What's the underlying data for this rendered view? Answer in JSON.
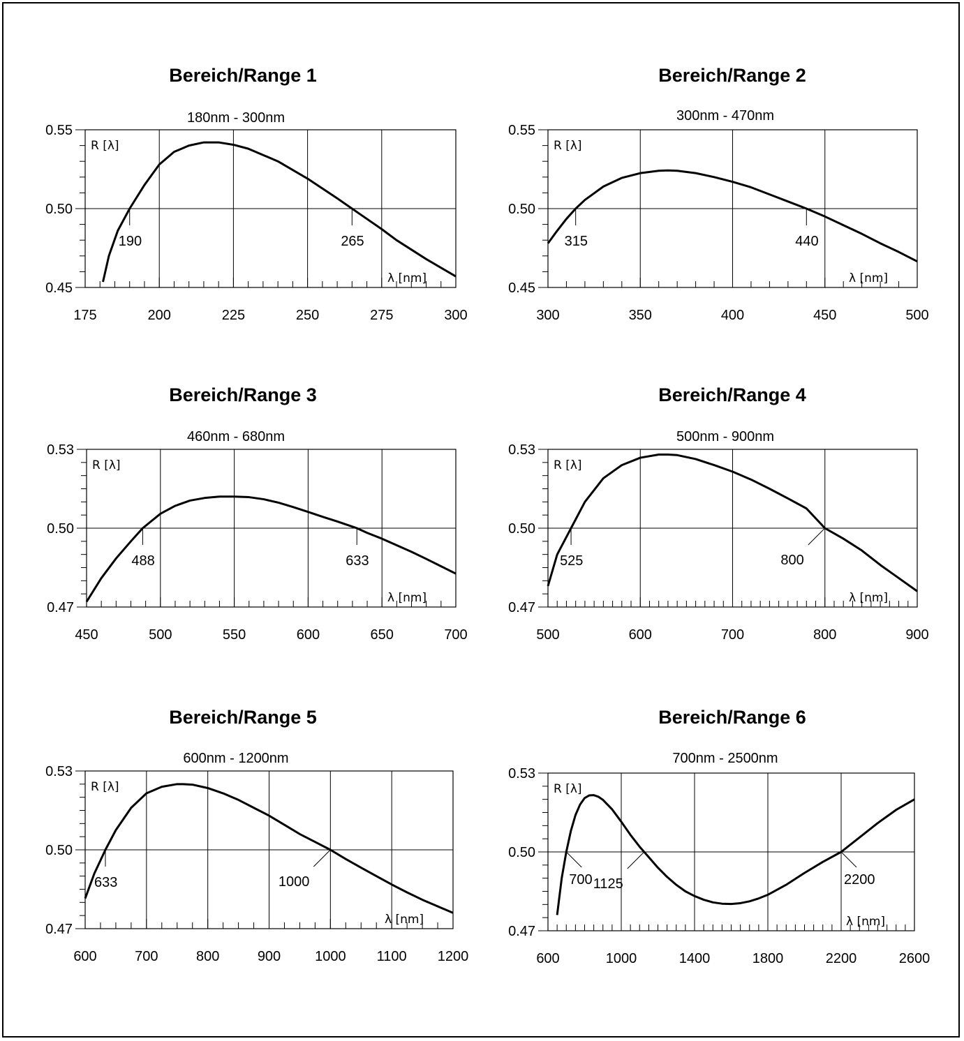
{
  "chart_data": [
    {
      "type": "line",
      "title": "Bereich/Range 1",
      "subtitle": "180nm - 300nm",
      "xlabel": "λ [nm]",
      "ylabel": "R [λ]",
      "xlim": [
        175,
        300
      ],
      "ylim": [
        0.45,
        0.55
      ],
      "x_major": [
        175,
        200,
        225,
        250,
        275,
        300
      ],
      "x_tick_labels": [
        "175",
        "200",
        "225",
        "250",
        "275",
        "300"
      ],
      "x_grid": [
        200,
        225,
        250,
        275
      ],
      "x_minor_step": 5,
      "y_tick_values": [
        0.45,
        0.5,
        0.55
      ],
      "y_tick_labels": [
        "0.45",
        "0.50",
        "0.55"
      ],
      "y_minor_step": 0.01,
      "grid": true,
      "annotations": [
        {
          "x": 190,
          "y": 0.5,
          "label": "190",
          "dir": "down"
        },
        {
          "x": 265,
          "y": 0.5,
          "label": "265",
          "dir": "down"
        }
      ],
      "series": [
        {
          "x": [
            181,
            183,
            186,
            190,
            195,
            200,
            205,
            210,
            215,
            220,
            225,
            230,
            240,
            250,
            260,
            265,
            270,
            275,
            280,
            290,
            300
          ],
          "y": [
            0.4535,
            0.47,
            0.486,
            0.5,
            0.515,
            0.528,
            0.536,
            0.54,
            0.542,
            0.542,
            0.5405,
            0.538,
            0.53,
            0.519,
            0.5065,
            0.5,
            0.4935,
            0.487,
            0.48,
            0.468,
            0.457
          ]
        }
      ]
    },
    {
      "type": "line",
      "title": "Bereich/Range 2",
      "subtitle": "300nm - 470nm",
      "xlabel": "λ [nm]",
      "ylabel": "R [λ]",
      "xlim": [
        300,
        500
      ],
      "ylim": [
        0.45,
        0.55
      ],
      "x_major": [
        300,
        350,
        400,
        450,
        500
      ],
      "x_tick_labels": [
        "300",
        "350",
        "400",
        "450",
        "500"
      ],
      "x_grid": [
        350,
        400,
        450
      ],
      "x_minor_step": 10,
      "y_tick_values": [
        0.45,
        0.5,
        0.55
      ],
      "y_tick_labels": [
        "0.45",
        "0.50",
        "0.55"
      ],
      "y_minor_step": 0.01,
      "grid": true,
      "annotations": [
        {
          "x": 315,
          "y": 0.5,
          "label": "315",
          "dir": "down"
        },
        {
          "x": 440,
          "y": 0.5,
          "label": "440",
          "dir": "down"
        }
      ],
      "series": [
        {
          "x": [
            300,
            305,
            310,
            315,
            320,
            330,
            340,
            350,
            360,
            365,
            370,
            380,
            390,
            400,
            410,
            420,
            430,
            440,
            450,
            460,
            470,
            480,
            490,
            500
          ],
          "y": [
            0.478,
            0.486,
            0.4935,
            0.5,
            0.5055,
            0.514,
            0.5195,
            0.5225,
            0.524,
            0.5242,
            0.524,
            0.5225,
            0.52,
            0.517,
            0.5135,
            0.509,
            0.5045,
            0.5,
            0.495,
            0.4895,
            0.484,
            0.478,
            0.4725,
            0.4665
          ]
        }
      ]
    },
    {
      "type": "line",
      "title": "Bereich/Range 3",
      "subtitle": "460nm - 680nm",
      "xlabel": "λ [nm]",
      "ylabel": "R [λ]",
      "xlim": [
        450,
        700
      ],
      "ylim": [
        0.47,
        0.53
      ],
      "x_major": [
        450,
        500,
        550,
        600,
        650,
        700
      ],
      "x_tick_labels": [
        "450",
        "500",
        "550",
        "600",
        "650",
        "700"
      ],
      "x_grid": [
        500,
        550,
        600,
        650
      ],
      "x_minor_step": 10,
      "y_tick_values": [
        0.47,
        0.5,
        0.53
      ],
      "y_tick_labels": [
        "0.47",
        "0.50",
        "0.53"
      ],
      "y_minor_step": 0.005,
      "grid": true,
      "annotations": [
        {
          "x": 488,
          "y": 0.5,
          "label": "488",
          "dir": "down"
        },
        {
          "x": 633,
          "y": 0.5,
          "label": "633",
          "dir": "down"
        }
      ],
      "series": [
        {
          "x": [
            450,
            460,
            470,
            480,
            488,
            500,
            510,
            520,
            530,
            540,
            550,
            560,
            570,
            580,
            590,
            600,
            610,
            620,
            633,
            640,
            650,
            660,
            670,
            680,
            690,
            700
          ],
          "y": [
            0.472,
            0.481,
            0.4885,
            0.495,
            0.5,
            0.5055,
            0.5085,
            0.5105,
            0.5115,
            0.512,
            0.512,
            0.5118,
            0.511,
            0.5097,
            0.508,
            0.5062,
            0.5043,
            0.5025,
            0.5,
            0.4982,
            0.496,
            0.4935,
            0.491,
            0.4883,
            0.4855,
            0.4827
          ]
        }
      ]
    },
    {
      "type": "line",
      "title": "Bereich/Range 4",
      "subtitle": "500nm - 900nm",
      "xlabel": "λ [nm]",
      "ylabel": "R [λ]",
      "xlim": [
        500,
        900
      ],
      "ylim": [
        0.47,
        0.53
      ],
      "x_major": [
        500,
        600,
        700,
        800,
        900
      ],
      "x_tick_labels": [
        "500",
        "600",
        "700",
        "800",
        "900"
      ],
      "x_grid": [
        600,
        700,
        800
      ],
      "x_minor_step": 10,
      "y_tick_values": [
        0.47,
        0.5,
        0.53
      ],
      "y_tick_labels": [
        "0.47",
        "0.50",
        "0.53"
      ],
      "y_minor_step": 0.005,
      "grid": true,
      "annotations": [
        {
          "x": 525,
          "y": 0.5,
          "label": "525",
          "dir": "down"
        },
        {
          "x": 800,
          "y": 0.5,
          "label": "800",
          "dir": "downleft"
        }
      ],
      "series": [
        {
          "x": [
            500,
            510,
            525,
            540,
            560,
            580,
            600,
            620,
            630,
            640,
            660,
            680,
            700,
            720,
            740,
            760,
            780,
            800,
            820,
            840,
            860,
            880,
            900
          ],
          "y": [
            0.478,
            0.49,
            0.5,
            0.51,
            0.519,
            0.524,
            0.5268,
            0.528,
            0.528,
            0.5278,
            0.5263,
            0.524,
            0.5215,
            0.5185,
            0.515,
            0.5113,
            0.5075,
            0.5,
            0.496,
            0.4915,
            0.486,
            0.481,
            0.476
          ]
        }
      ]
    },
    {
      "type": "line",
      "title": "Bereich/Range 5",
      "subtitle": "600nm - 1200nm",
      "xlabel": "λ [nm]",
      "ylabel": "R [λ]",
      "xlim": [
        600,
        1200
      ],
      "ylim": [
        0.47,
        0.53
      ],
      "x_major": [
        600,
        700,
        800,
        900,
        1000,
        1100,
        1200
      ],
      "x_tick_labels": [
        "600",
        "700",
        "800",
        "900",
        "1000",
        "1100",
        "1200"
      ],
      "x_grid": [
        700,
        800,
        900,
        1000,
        1100
      ],
      "x_minor_step": 25,
      "y_tick_values": [
        0.47,
        0.5,
        0.53
      ],
      "y_tick_labels": [
        "0.47",
        "0.50",
        "0.53"
      ],
      "y_minor_step": 0.005,
      "grid": true,
      "annotations": [
        {
          "x": 633,
          "y": 0.5,
          "label": "633",
          "dir": "down"
        },
        {
          "x": 1000,
          "y": 0.5,
          "label": "1000",
          "dir": "downleft"
        }
      ],
      "series": [
        {
          "x": [
            600,
            615,
            633,
            650,
            675,
            700,
            725,
            750,
            760,
            775,
            800,
            825,
            850,
            875,
            900,
            925,
            950,
            975,
            1000,
            1025,
            1050,
            1075,
            1100,
            1125,
            1150,
            1175,
            1200
          ],
          "y": [
            0.4815,
            0.491,
            0.5,
            0.5075,
            0.516,
            0.5215,
            0.524,
            0.525,
            0.525,
            0.5248,
            0.5235,
            0.5215,
            0.519,
            0.516,
            0.513,
            0.5095,
            0.506,
            0.503,
            0.5,
            0.4965,
            0.4932,
            0.49,
            0.4868,
            0.4838,
            0.481,
            0.4785,
            0.476
          ]
        }
      ]
    },
    {
      "type": "line",
      "title": "Bereich/Range 6",
      "subtitle": "700nm - 2500nm",
      "xlabel": "λ [nm]",
      "ylabel": "R [λ]",
      "xlim": [
        600,
        2600
      ],
      "ylim": [
        0.47,
        0.53
      ],
      "x_major": [
        600,
        1000,
        1400,
        1800,
        2200,
        2600
      ],
      "x_tick_labels": [
        "600",
        "1000",
        "1400",
        "1800",
        "2200",
        "2600"
      ],
      "x_grid": [
        1000,
        1400,
        1800,
        2200
      ],
      "x_minor_step": 50,
      "y_tick_values": [
        0.47,
        0.5,
        0.53
      ],
      "y_tick_labels": [
        "0.47",
        "0.50",
        "0.53"
      ],
      "y_minor_step": 0.005,
      "grid": true,
      "annotations": [
        {
          "x": 700,
          "y": 0.5,
          "label": "700",
          "dir": "downright"
        },
        {
          "x": 1125,
          "y": 0.5,
          "label": "1125",
          "dir": "downleft"
        },
        {
          "x": 2200,
          "y": 0.5,
          "label": "2200",
          "dir": "downright"
        }
      ],
      "series": [
        {
          "x": [
            650,
            675,
            700,
            725,
            750,
            775,
            800,
            825,
            850,
            875,
            900,
            950,
            1000,
            1050,
            1100,
            1125,
            1150,
            1200,
            1250,
            1300,
            1350,
            1400,
            1450,
            1500,
            1550,
            1600,
            1650,
            1700,
            1750,
            1800,
            1900,
            2000,
            2100,
            2200,
            2300,
            2400,
            2500,
            2600
          ],
          "y": [
            0.476,
            0.49,
            0.5,
            0.508,
            0.514,
            0.518,
            0.5205,
            0.5215,
            0.5216,
            0.521,
            0.5198,
            0.5162,
            0.5115,
            0.5065,
            0.502,
            0.5,
            0.498,
            0.494,
            0.4905,
            0.4875,
            0.485,
            0.4832,
            0.4818,
            0.4808,
            0.4803,
            0.4802,
            0.4805,
            0.4812,
            0.4823,
            0.4837,
            0.4875,
            0.492,
            0.4962,
            0.5,
            0.5055,
            0.511,
            0.516,
            0.52
          ]
        }
      ]
    }
  ]
}
